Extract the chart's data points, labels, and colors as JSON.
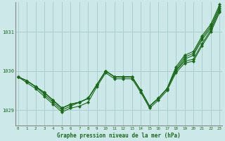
{
  "title": "Graphe pression niveau de la mer (hPa)",
  "bg_color": "#cce8e8",
  "grid_color": "#aacfcf",
  "line_color": "#1a6b1a",
  "xlim": [
    0,
    23
  ],
  "ylim": [
    1028.6,
    1031.75
  ],
  "yticks": [
    1029,
    1030,
    1031
  ],
  "xticks": [
    0,
    1,
    2,
    3,
    4,
    5,
    6,
    7,
    8,
    9,
    10,
    11,
    12,
    13,
    14,
    15,
    16,
    17,
    18,
    19,
    20,
    21,
    22,
    23
  ],
  "series": [
    [
      1029.85,
      1029.75,
      1029.6,
      1029.4,
      1029.2,
      1029.0,
      1029.1,
      1029.2,
      1029.3,
      1029.65,
      1030.0,
      1029.85,
      1029.85,
      1029.85,
      1029.5,
      1029.1,
      1029.3,
      1029.55,
      1030.0,
      1030.25,
      1030.3,
      1030.7,
      1031.05,
      1031.55
    ],
    [
      1029.85,
      1029.7,
      1029.55,
      1029.35,
      1029.15,
      1028.95,
      1029.05,
      1029.1,
      1029.2,
      1029.6,
      1029.95,
      1029.8,
      1029.8,
      1029.8,
      1029.45,
      1029.05,
      1029.25,
      1029.5,
      1029.95,
      1030.2,
      1030.25,
      1030.65,
      1031.0,
      1031.5
    ],
    [
      1029.85,
      1029.75,
      1029.6,
      1029.45,
      1029.25,
      1029.05,
      1029.15,
      1029.2,
      1029.3,
      1029.65,
      1030.0,
      1029.85,
      1029.85,
      1029.85,
      1029.5,
      1029.1,
      1029.3,
      1029.55,
      1030.0,
      1030.3,
      1030.4,
      1030.8,
      1031.1,
      1031.6
    ],
    [
      1029.85,
      1029.75,
      1029.6,
      1029.45,
      1029.25,
      1029.05,
      1029.15,
      1029.2,
      1029.3,
      1029.65,
      1030.0,
      1029.85,
      1029.85,
      1029.85,
      1029.5,
      1029.1,
      1029.3,
      1029.55,
      1030.05,
      1030.35,
      1030.45,
      1030.85,
      1031.15,
      1031.65
    ],
    [
      1029.85,
      1029.75,
      1029.6,
      1029.45,
      1029.25,
      1029.05,
      1029.15,
      1029.2,
      1029.3,
      1029.65,
      1030.0,
      1029.85,
      1029.85,
      1029.85,
      1029.5,
      1029.1,
      1029.3,
      1029.55,
      1030.1,
      1030.4,
      1030.5,
      1030.9,
      1031.2,
      1031.7
    ]
  ]
}
